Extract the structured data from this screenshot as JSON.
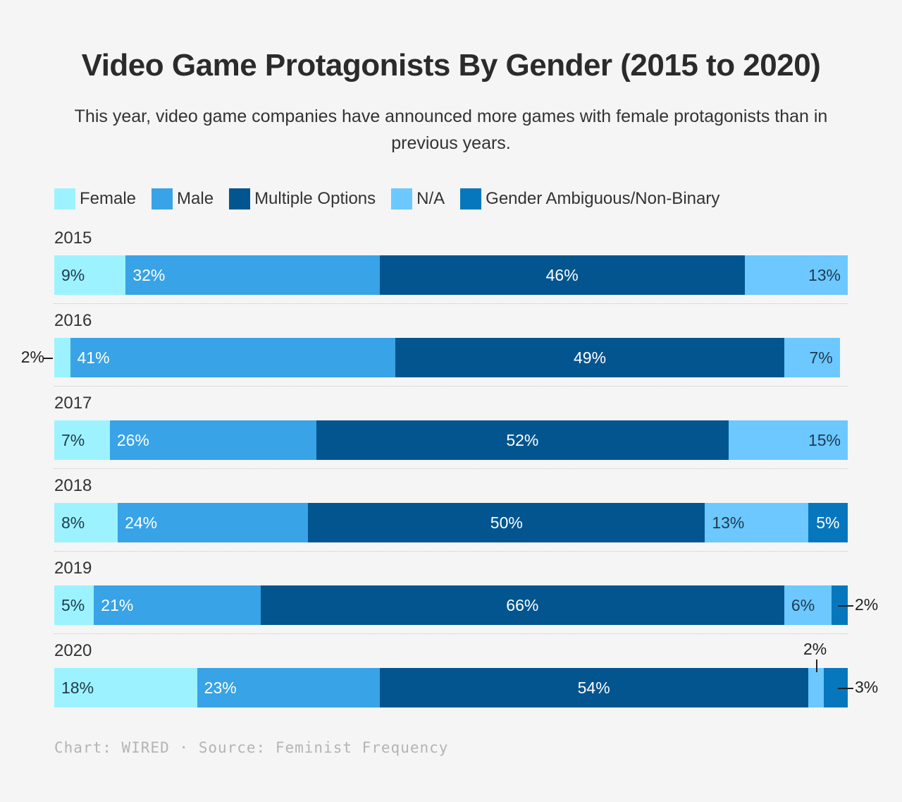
{
  "chart_data": {
    "type": "bar",
    "orientation": "horizontal",
    "stacked": true,
    "normalized": true,
    "title": "Video Game Protagonists By Gender (2015 to 2020)",
    "subtitle": "This year, video game companies have announced more games with female protagonists than in previous years.",
    "legend_position": "top-left",
    "grid": false,
    "categories": [
      "2015",
      "2016",
      "2017",
      "2018",
      "2019",
      "2020"
    ],
    "series": [
      {
        "name": "Female",
        "color": "#9cf3ff",
        "values": [
          9,
          2,
          7,
          8,
          5,
          18
        ]
      },
      {
        "name": "Male",
        "color": "#38a3e6",
        "values": [
          32,
          41,
          26,
          24,
          21,
          23
        ]
      },
      {
        "name": "Multiple Options",
        "color": "#02558f",
        "values": [
          46,
          49,
          52,
          50,
          66,
          54
        ]
      },
      {
        "name": "N/A",
        "color": "#6cc8ff",
        "values": [
          13,
          7,
          15,
          13,
          6,
          2
        ]
      },
      {
        "name": "Gender Ambiguous/Non-Binary",
        "color": "#0777bd",
        "values": [
          0,
          0,
          0,
          5,
          2,
          3
        ]
      }
    ],
    "value_suffix": "%",
    "footer": {
      "credit": "Chart: WIRED",
      "separator": "·",
      "source": "Source: Feminist Frequency"
    }
  }
}
